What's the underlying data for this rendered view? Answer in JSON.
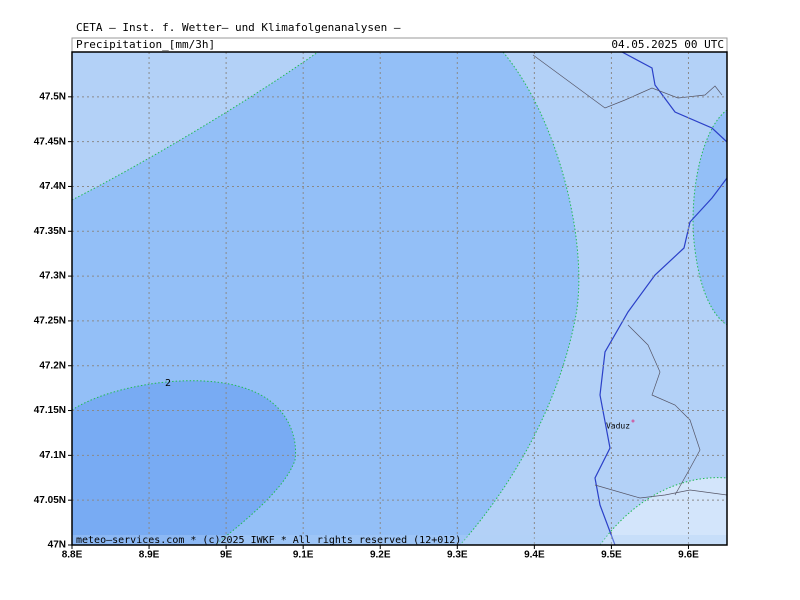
{
  "header": {
    "source": "CETA – Inst. f. Wetter– und Klimafolgenanalysen –",
    "field": "Precipitation_[mm/3h]",
    "time": "04.05.2025 00 UTC"
  },
  "map": {
    "xlim": [
      8.8,
      9.65
    ],
    "ylim": [
      47.0,
      47.55
    ],
    "xticks": [
      {
        "value": 8.8,
        "label": "8.8E"
      },
      {
        "value": 8.9,
        "label": "8.9E"
      },
      {
        "value": 9.0,
        "label": "9E"
      },
      {
        "value": 9.1,
        "label": "9.1E"
      },
      {
        "value": 9.2,
        "label": "9.2E"
      },
      {
        "value": 9.3,
        "label": "9.3E"
      },
      {
        "value": 9.4,
        "label": "9.4E"
      },
      {
        "value": 9.5,
        "label": "9.5E"
      },
      {
        "value": 9.6,
        "label": "9.6E"
      }
    ],
    "yticks": [
      {
        "value": 47.0,
        "label": "47N"
      },
      {
        "value": 47.05,
        "label": "47.05N"
      },
      {
        "value": 47.1,
        "label": "47.1N"
      },
      {
        "value": 47.15,
        "label": "47.15N"
      },
      {
        "value": 47.2,
        "label": "47.2N"
      },
      {
        "value": 47.25,
        "label": "47.25N"
      },
      {
        "value": 47.3,
        "label": "47.3N"
      },
      {
        "value": 47.35,
        "label": "47.35N"
      },
      {
        "value": 47.4,
        "label": "47.4N"
      },
      {
        "value": 47.45,
        "label": "47.45N"
      },
      {
        "value": 47.5,
        "label": "47.5N"
      }
    ],
    "contour_label": "2",
    "city": "Vaduz"
  },
  "footer": "meteo–services.com * (c)2025 IWKF * All rights reserved (12+012)"
}
